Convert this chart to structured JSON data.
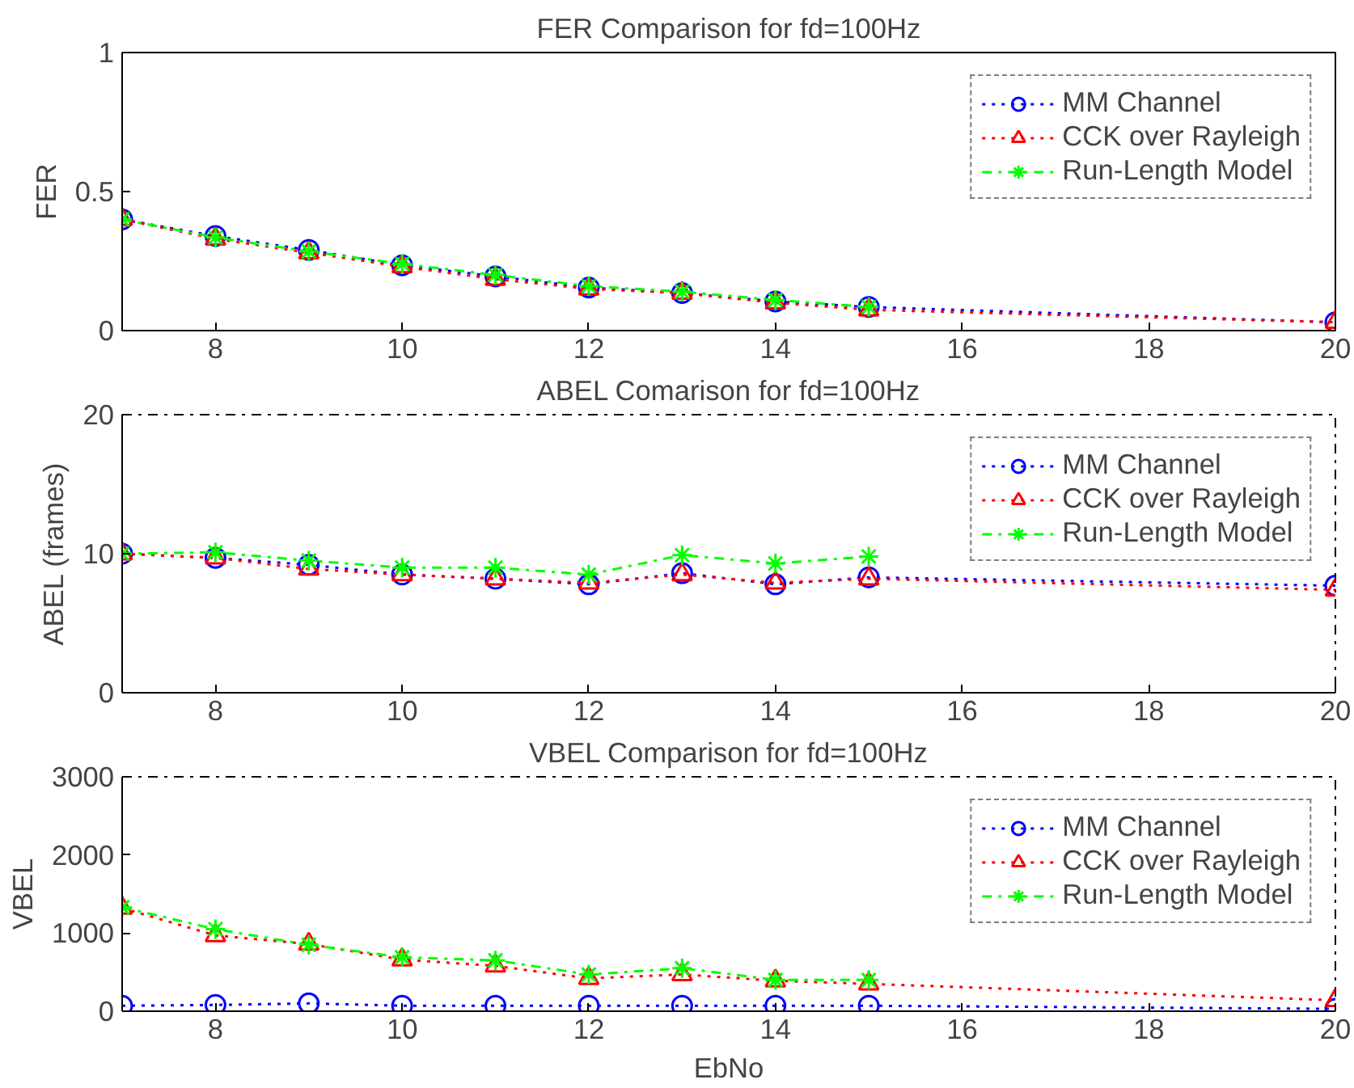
{
  "chart_data": [
    {
      "type": "line",
      "title": "FER Comparison for fd=100Hz",
      "ylabel": "FER",
      "x": [
        7,
        8,
        9,
        10,
        11,
        12,
        13,
        14,
        15,
        20
      ],
      "xlim": [
        7,
        20
      ],
      "xticks": [
        8,
        10,
        12,
        14,
        16,
        18,
        20
      ],
      "ylim": [
        0,
        1
      ],
      "yticks": [
        0,
        0.5,
        1
      ],
      "grid": false,
      "legend": "top right",
      "series": [
        {
          "name": "MM Channel",
          "color": "#0000ff",
          "marker": "circle",
          "line_style": "dotted",
          "values": [
            0.4,
            0.34,
            0.29,
            0.235,
            0.195,
            0.155,
            0.135,
            0.105,
            0.085,
            0.03
          ]
        },
        {
          "name": "CCK over Rayleigh",
          "color": "#ff0000",
          "marker": "triangle",
          "line_style": "dotted",
          "values": [
            0.4,
            0.33,
            0.28,
            0.23,
            0.185,
            0.15,
            0.135,
            0.1,
            0.075,
            0.03
          ]
        },
        {
          "name": "Run-Length Model",
          "color": "#00ff00",
          "marker": "cross",
          "line_style": "dashed",
          "x": [
            7,
            8,
            9,
            10,
            11,
            12,
            13,
            14,
            15
          ],
          "values": [
            0.4,
            0.335,
            0.285,
            0.24,
            0.2,
            0.16,
            0.14,
            0.11,
            0.085
          ]
        }
      ]
    },
    {
      "type": "line",
      "title": "ABEL Comarison for fd=100Hz",
      "ylabel": "ABEL (frames)",
      "x": [
        7,
        8,
        9,
        10,
        11,
        12,
        13,
        14,
        15,
        20
      ],
      "xlim": [
        7,
        20
      ],
      "xticks": [
        8,
        10,
        12,
        14,
        16,
        18,
        20
      ],
      "ylim": [
        0,
        20
      ],
      "yticks": [
        0,
        10,
        20
      ],
      "grid": false,
      "legend": "top right",
      "series": [
        {
          "name": "MM Channel",
          "color": "#0000ff",
          "marker": "circle",
          "line_style": "dotted",
          "values": [
            10,
            9.7,
            9.2,
            8.5,
            8.2,
            7.8,
            8.6,
            7.8,
            8.3,
            7.7
          ]
        },
        {
          "name": "CCK over Rayleigh",
          "color": "#ff0000",
          "marker": "triangle",
          "line_style": "dotted",
          "values": [
            10,
            9.7,
            8.9,
            8.5,
            8.2,
            7.9,
            8.5,
            7.9,
            8.2,
            7.4
          ]
        },
        {
          "name": "Run-Length Model",
          "color": "#00ff00",
          "marker": "cross",
          "line_style": "dashed",
          "x": [
            7,
            8,
            9,
            10,
            11,
            12,
            13,
            14,
            15
          ],
          "values": [
            10,
            10.1,
            9.5,
            9.0,
            9.0,
            8.5,
            9.9,
            9.3,
            9.8
          ]
        }
      ]
    },
    {
      "type": "line",
      "title": "VBEL Comparison for fd=100Hz",
      "xlabel": "EbNo",
      "ylabel": "VBEL",
      "x": [
        7,
        8,
        9,
        10,
        11,
        12,
        13,
        14,
        15,
        20
      ],
      "xlim": [
        7,
        20
      ],
      "xticks": [
        8,
        10,
        12,
        14,
        16,
        18,
        20
      ],
      "ylim": [
        0,
        3000
      ],
      "yticks": [
        0,
        1000,
        2000,
        3000
      ],
      "grid": false,
      "legend": "top right",
      "series": [
        {
          "name": "MM Channel",
          "color": "#0000ff",
          "marker": "circle",
          "line_style": "dotted",
          "values": [
            70,
            80,
            100,
            70,
            70,
            70,
            70,
            70,
            70,
            30
          ]
        },
        {
          "name": "CCK over Rayleigh",
          "color": "#ff0000",
          "marker": "triangle",
          "line_style": "dotted",
          "values": [
            1320,
            970,
            860,
            660,
            580,
            420,
            470,
            390,
            350,
            140
          ]
        },
        {
          "name": "Run-Length Model",
          "color": "#00ff00",
          "marker": "cross",
          "line_style": "dashed",
          "x": [
            7,
            8,
            9,
            10,
            11,
            12,
            13,
            14,
            15
          ],
          "values": [
            1330,
            1050,
            850,
            690,
            650,
            470,
            550,
            400,
            400
          ]
        }
      ]
    }
  ]
}
